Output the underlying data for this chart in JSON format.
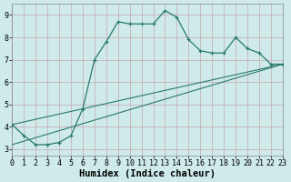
{
  "line1_x": [
    0,
    1,
    2,
    3,
    4,
    5,
    6,
    7,
    8,
    9,
    10,
    11,
    12,
    13,
    14,
    15,
    16,
    17,
    18,
    19,
    20,
    21,
    22,
    23
  ],
  "line1_y": [
    4.1,
    3.6,
    3.2,
    3.2,
    3.3,
    3.6,
    4.8,
    7.0,
    7.8,
    8.7,
    8.6,
    8.6,
    8.6,
    9.2,
    8.9,
    7.9,
    7.4,
    7.3,
    7.3,
    8.0,
    7.5,
    7.3,
    6.8,
    6.8
  ],
  "line2_x": [
    0,
    23
  ],
  "line2_y": [
    4.1,
    6.8
  ],
  "line3_x": [
    0,
    23
  ],
  "line3_y": [
    3.2,
    6.8
  ],
  "color": "#2a7a6a",
  "bg_color": "#ceeaea",
  "grid_major_color": "#b8c8c8",
  "grid_minor_color": "#d0dede",
  "xlabel": "Humidex (Indice chaleur)",
  "xlim": [
    0,
    23
  ],
  "ylim": [
    2.7,
    9.5
  ],
  "xticks": [
    0,
    1,
    2,
    3,
    4,
    5,
    6,
    7,
    8,
    9,
    10,
    11,
    12,
    13,
    14,
    15,
    16,
    17,
    18,
    19,
    20,
    21,
    22,
    23
  ],
  "yticks": [
    3,
    4,
    5,
    6,
    7,
    8,
    9
  ],
  "xlabel_fontsize": 7.5,
  "tick_fontsize": 6.0,
  "figsize": [
    3.2,
    2.0
  ],
  "dpi": 100
}
